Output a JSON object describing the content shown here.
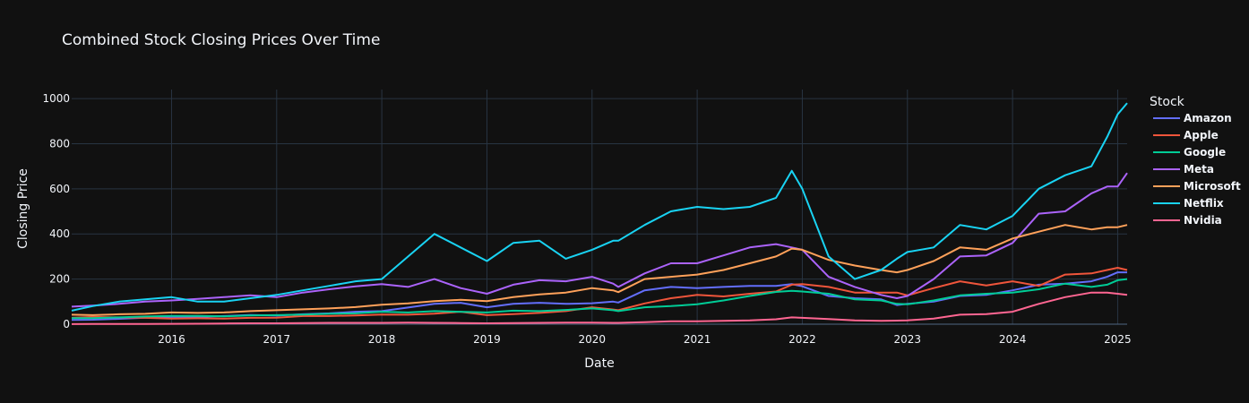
{
  "chart_data": {
    "type": "line",
    "title": "Combined Stock Closing Prices Over Time",
    "xlabel": "Date",
    "ylabel": "Closing Price",
    "legend_title": "Stock",
    "legend_position": "right",
    "grid": true,
    "xlim": [
      2015.05,
      2025.09
    ],
    "ylim": [
      0,
      1040
    ],
    "x_ticks": [
      2016,
      2017,
      2018,
      2019,
      2020,
      2021,
      2022,
      2023,
      2024,
      2025
    ],
    "x_tick_labels": [
      "2016",
      "2017",
      "2018",
      "2019",
      "2020",
      "2021",
      "2022",
      "2023",
      "2024",
      "2025"
    ],
    "y_ticks": [
      0,
      200,
      400,
      600,
      800,
      1000
    ],
    "y_tick_labels": [
      "0",
      "200",
      "400",
      "600",
      "800",
      "1000"
    ],
    "x": [
      2015.05,
      2015.25,
      2015.5,
      2015.75,
      2016.0,
      2016.25,
      2016.5,
      2016.75,
      2017.0,
      2017.25,
      2017.5,
      2017.75,
      2018.0,
      2018.25,
      2018.5,
      2018.75,
      2019.0,
      2019.25,
      2019.5,
      2019.75,
      2020.0,
      2020.2,
      2020.25,
      2020.5,
      2020.75,
      2021.0,
      2021.25,
      2021.5,
      2021.75,
      2021.9,
      2022.0,
      2022.25,
      2022.5,
      2022.75,
      2022.9,
      2023.0,
      2023.25,
      2023.5,
      2023.75,
      2024.0,
      2024.25,
      2024.5,
      2024.75,
      2024.9,
      2025.0,
      2025.09
    ],
    "series": [
      {
        "name": "Amazon",
        "color": "#636efa",
        "values": [
          19,
          20,
          24,
          29,
          32,
          32,
          36,
          41,
          38,
          44,
          48,
          55,
          58,
          74,
          90,
          95,
          75,
          90,
          95,
          90,
          93,
          100,
          96,
          150,
          165,
          160,
          165,
          170,
          170,
          178,
          168,
          125,
          115,
          110,
          85,
          90,
          100,
          125,
          130,
          150,
          175,
          180,
          190,
          210,
          230,
          230
        ]
      },
      {
        "name": "Apple",
        "color": "#ef553b",
        "values": [
          28,
          32,
          30,
          28,
          25,
          26,
          25,
          28,
          29,
          36,
          36,
          39,
          43,
          42,
          47,
          55,
          40,
          45,
          50,
          58,
          75,
          65,
          62,
          92,
          115,
          130,
          123,
          135,
          145,
          175,
          178,
          165,
          140,
          140,
          140,
          128,
          160,
          190,
          172,
          190,
          170,
          220,
          225,
          240,
          250,
          240
        ]
      },
      {
        "name": "Google",
        "color": "#00cc96",
        "values": [
          27,
          27,
          30,
          34,
          37,
          37,
          35,
          39,
          40,
          43,
          46,
          48,
          55,
          52,
          58,
          55,
          52,
          60,
          58,
          63,
          70,
          62,
          58,
          75,
          80,
          88,
          105,
          125,
          143,
          148,
          145,
          135,
          110,
          105,
          90,
          88,
          105,
          128,
          135,
          140,
          155,
          180,
          165,
          175,
          195,
          200
        ]
      },
      {
        "name": "Meta",
        "color": "#ab63fa",
        "values": [
          78,
          82,
          90,
          100,
          105,
          112,
          120,
          128,
          120,
          140,
          155,
          168,
          178,
          165,
          200,
          160,
          135,
          175,
          195,
          190,
          210,
          180,
          165,
          225,
          270,
          270,
          305,
          340,
          355,
          340,
          330,
          210,
          165,
          130,
          115,
          125,
          200,
          300,
          305,
          360,
          490,
          500,
          580,
          610,
          610,
          670
        ]
      },
      {
        "name": "Microsoft",
        "color": "#ffa15a",
        "values": [
          42,
          40,
          44,
          46,
          52,
          50,
          52,
          58,
          62,
          66,
          70,
          76,
          86,
          92,
          102,
          108,
          102,
          120,
          132,
          140,
          160,
          150,
          142,
          200,
          210,
          220,
          240,
          270,
          300,
          335,
          330,
          285,
          260,
          240,
          230,
          240,
          280,
          340,
          330,
          380,
          410,
          440,
          420,
          430,
          430,
          440
        ]
      },
      {
        "name": "Netflix",
        "color": "#19d3f3",
        "values": [
          60,
          80,
          100,
          110,
          120,
          100,
          100,
          115,
          130,
          150,
          170,
          190,
          200,
          300,
          400,
          340,
          280,
          360,
          370,
          290,
          330,
          370,
          370,
          440,
          500,
          520,
          510,
          520,
          560,
          680,
          600,
          300,
          200,
          240,
          290,
          320,
          340,
          440,
          420,
          480,
          600,
          660,
          700,
          830,
          930,
          980
        ]
      },
      {
        "name": "Nvidia",
        "color": "#ff6692",
        "values": [
          0.5,
          0.6,
          0.9,
          1.2,
          1.7,
          2,
          3,
          4,
          4,
          5,
          6,
          6,
          6,
          7,
          6,
          5,
          4,
          5,
          6,
          7,
          7,
          6,
          6,
          9,
          13,
          13,
          15,
          17,
          22,
          30,
          28,
          23,
          17,
          15,
          16,
          17,
          25,
          42,
          45,
          55,
          90,
          120,
          140,
          140,
          135,
          130
        ]
      }
    ]
  }
}
